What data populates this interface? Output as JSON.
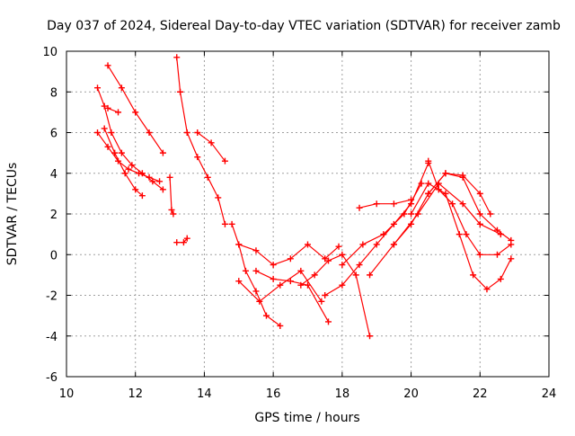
{
  "chart_data": {
    "type": "scatter",
    "title": "Day 037 of 2024, Sidereal Day-to-day VTEC variation (SDTVAR) for receiver zamb",
    "xlabel": "GPS time / hours",
    "ylabel": "SDTVAR / TECUs",
    "xlim": [
      10,
      24
    ],
    "ylim": [
      -6,
      10
    ],
    "xticks": [
      10,
      12,
      14,
      16,
      18,
      20,
      22,
      24
    ],
    "yticks": [
      -6,
      -4,
      -2,
      0,
      2,
      4,
      6,
      8,
      10
    ],
    "grid": true,
    "marker": "+",
    "color": "#ff0000",
    "series": [
      {
        "name": "track-1",
        "x": [
          10.9,
          11.1,
          11.3,
          11.6,
          11.9,
          12.2,
          12.5,
          12.8
        ],
        "y": [
          8.2,
          7.3,
          6.0,
          5.0,
          4.4,
          4.0,
          3.6,
          3.2
        ]
      },
      {
        "name": "track-2",
        "x": [
          10.9,
          11.2,
          11.5,
          11.8,
          12.1,
          12.4,
          12.7
        ],
        "y": [
          6.0,
          5.3,
          4.6,
          4.2,
          4.0,
          3.8,
          3.6
        ]
      },
      {
        "name": "track-3",
        "x": [
          11.1,
          11.4,
          11.7,
          12.0,
          12.2
        ],
        "y": [
          6.2,
          5.0,
          4.0,
          3.2,
          2.9
        ]
      },
      {
        "name": "track-4",
        "x": [
          11.2,
          11.6,
          12.0,
          12.4,
          12.8
        ],
        "y": [
          9.3,
          8.2,
          7.0,
          6.0,
          5.0
        ]
      },
      {
        "name": "track-5",
        "x": [
          11.2,
          11.5
        ],
        "y": [
          7.2,
          7.0
        ]
      },
      {
        "name": "track-6",
        "x": [
          13.2,
          13.3,
          13.5,
          13.8,
          14.1,
          14.4,
          14.6
        ],
        "y": [
          9.7,
          8.0,
          6.0,
          4.8,
          3.8,
          2.8,
          1.5
        ]
      },
      {
        "name": "track-7",
        "x": [
          13.2,
          13.4,
          13.5
        ],
        "y": [
          0.6,
          0.6,
          0.8
        ]
      },
      {
        "name": "track-8",
        "x": [
          13.0,
          13.05,
          13.1
        ],
        "y": [
          3.8,
          2.2,
          2.0
        ]
      },
      {
        "name": "track-9",
        "x": [
          13.8,
          14.2,
          14.6
        ],
        "y": [
          6.0,
          5.5,
          4.6
        ]
      },
      {
        "name": "track-10",
        "x": [
          14.8,
          15.0,
          15.2,
          15.5,
          15.8,
          16.2
        ],
        "y": [
          1.5,
          0.5,
          -0.8,
          -1.8,
          -3.0,
          -3.5
        ]
      },
      {
        "name": "track-11",
        "x": [
          15.0,
          15.5,
          16.0,
          16.5,
          17.0,
          17.5,
          17.9
        ],
        "y": [
          0.5,
          0.2,
          -0.5,
          -0.2,
          0.5,
          -0.2,
          0.4
        ]
      },
      {
        "name": "track-12",
        "x": [
          15.0,
          15.6,
          16.2,
          16.8,
          17.4
        ],
        "y": [
          -1.3,
          -2.3,
          -1.5,
          -0.8,
          -2.3
        ]
      },
      {
        "name": "track-13",
        "x": [
          15.5,
          16.0,
          16.5,
          17.0,
          17.6
        ],
        "y": [
          -0.8,
          -1.2,
          -1.3,
          -1.5,
          -3.3
        ]
      },
      {
        "name": "track-14",
        "x": [
          16.8,
          17.2,
          17.6,
          18.0,
          18.4,
          18.8
        ],
        "y": [
          -1.5,
          -1.0,
          -0.3,
          0.0,
          -1.0,
          -4.0
        ]
      },
      {
        "name": "track-15",
        "x": [
          17.5,
          18.0,
          18.5,
          19.0,
          19.5,
          20.0,
          20.5
        ],
        "y": [
          -2.0,
          -1.5,
          -0.5,
          0.5,
          1.5,
          2.5,
          4.5
        ]
      },
      {
        "name": "track-16",
        "x": [
          18.0,
          18.6,
          19.2,
          19.8,
          20.3
        ],
        "y": [
          -0.5,
          0.5,
          1.0,
          2.0,
          3.5
        ]
      },
      {
        "name": "track-17",
        "x": [
          18.5,
          19.0,
          19.5,
          20.0
        ],
        "y": [
          2.3,
          2.5,
          2.5,
          2.7
        ]
      },
      {
        "name": "track-18",
        "x": [
          18.8,
          19.5,
          20.2,
          20.8,
          21.5,
          22.0,
          22.6
        ],
        "y": [
          -1.0,
          0.5,
          2.0,
          3.5,
          2.5,
          1.5,
          1.0
        ]
      },
      {
        "name": "track-19",
        "x": [
          19.5,
          20.0,
          20.5,
          21.0,
          21.5,
          22.0,
          22.5,
          22.9
        ],
        "y": [
          0.5,
          1.5,
          3.0,
          4.0,
          3.8,
          2.0,
          1.2,
          0.7
        ]
      },
      {
        "name": "track-20",
        "x": [
          20.0,
          20.5,
          21.0,
          21.4,
          21.8,
          22.2,
          22.6,
          22.9
        ],
        "y": [
          2.0,
          3.5,
          3.0,
          1.0,
          -1.0,
          -1.7,
          -1.2,
          -0.2
        ]
      },
      {
        "name": "track-21",
        "x": [
          20.5,
          20.8,
          21.2,
          21.6,
          22.0,
          22.5,
          22.9
        ],
        "y": [
          4.6,
          3.2,
          2.5,
          1.0,
          0.0,
          0.0,
          0.5
        ]
      },
      {
        "name": "track-22",
        "x": [
          20.5,
          21.0,
          21.5,
          22.0,
          22.3
        ],
        "y": [
          3.0,
          4.0,
          3.9,
          3.0,
          2.0
        ]
      }
    ]
  }
}
